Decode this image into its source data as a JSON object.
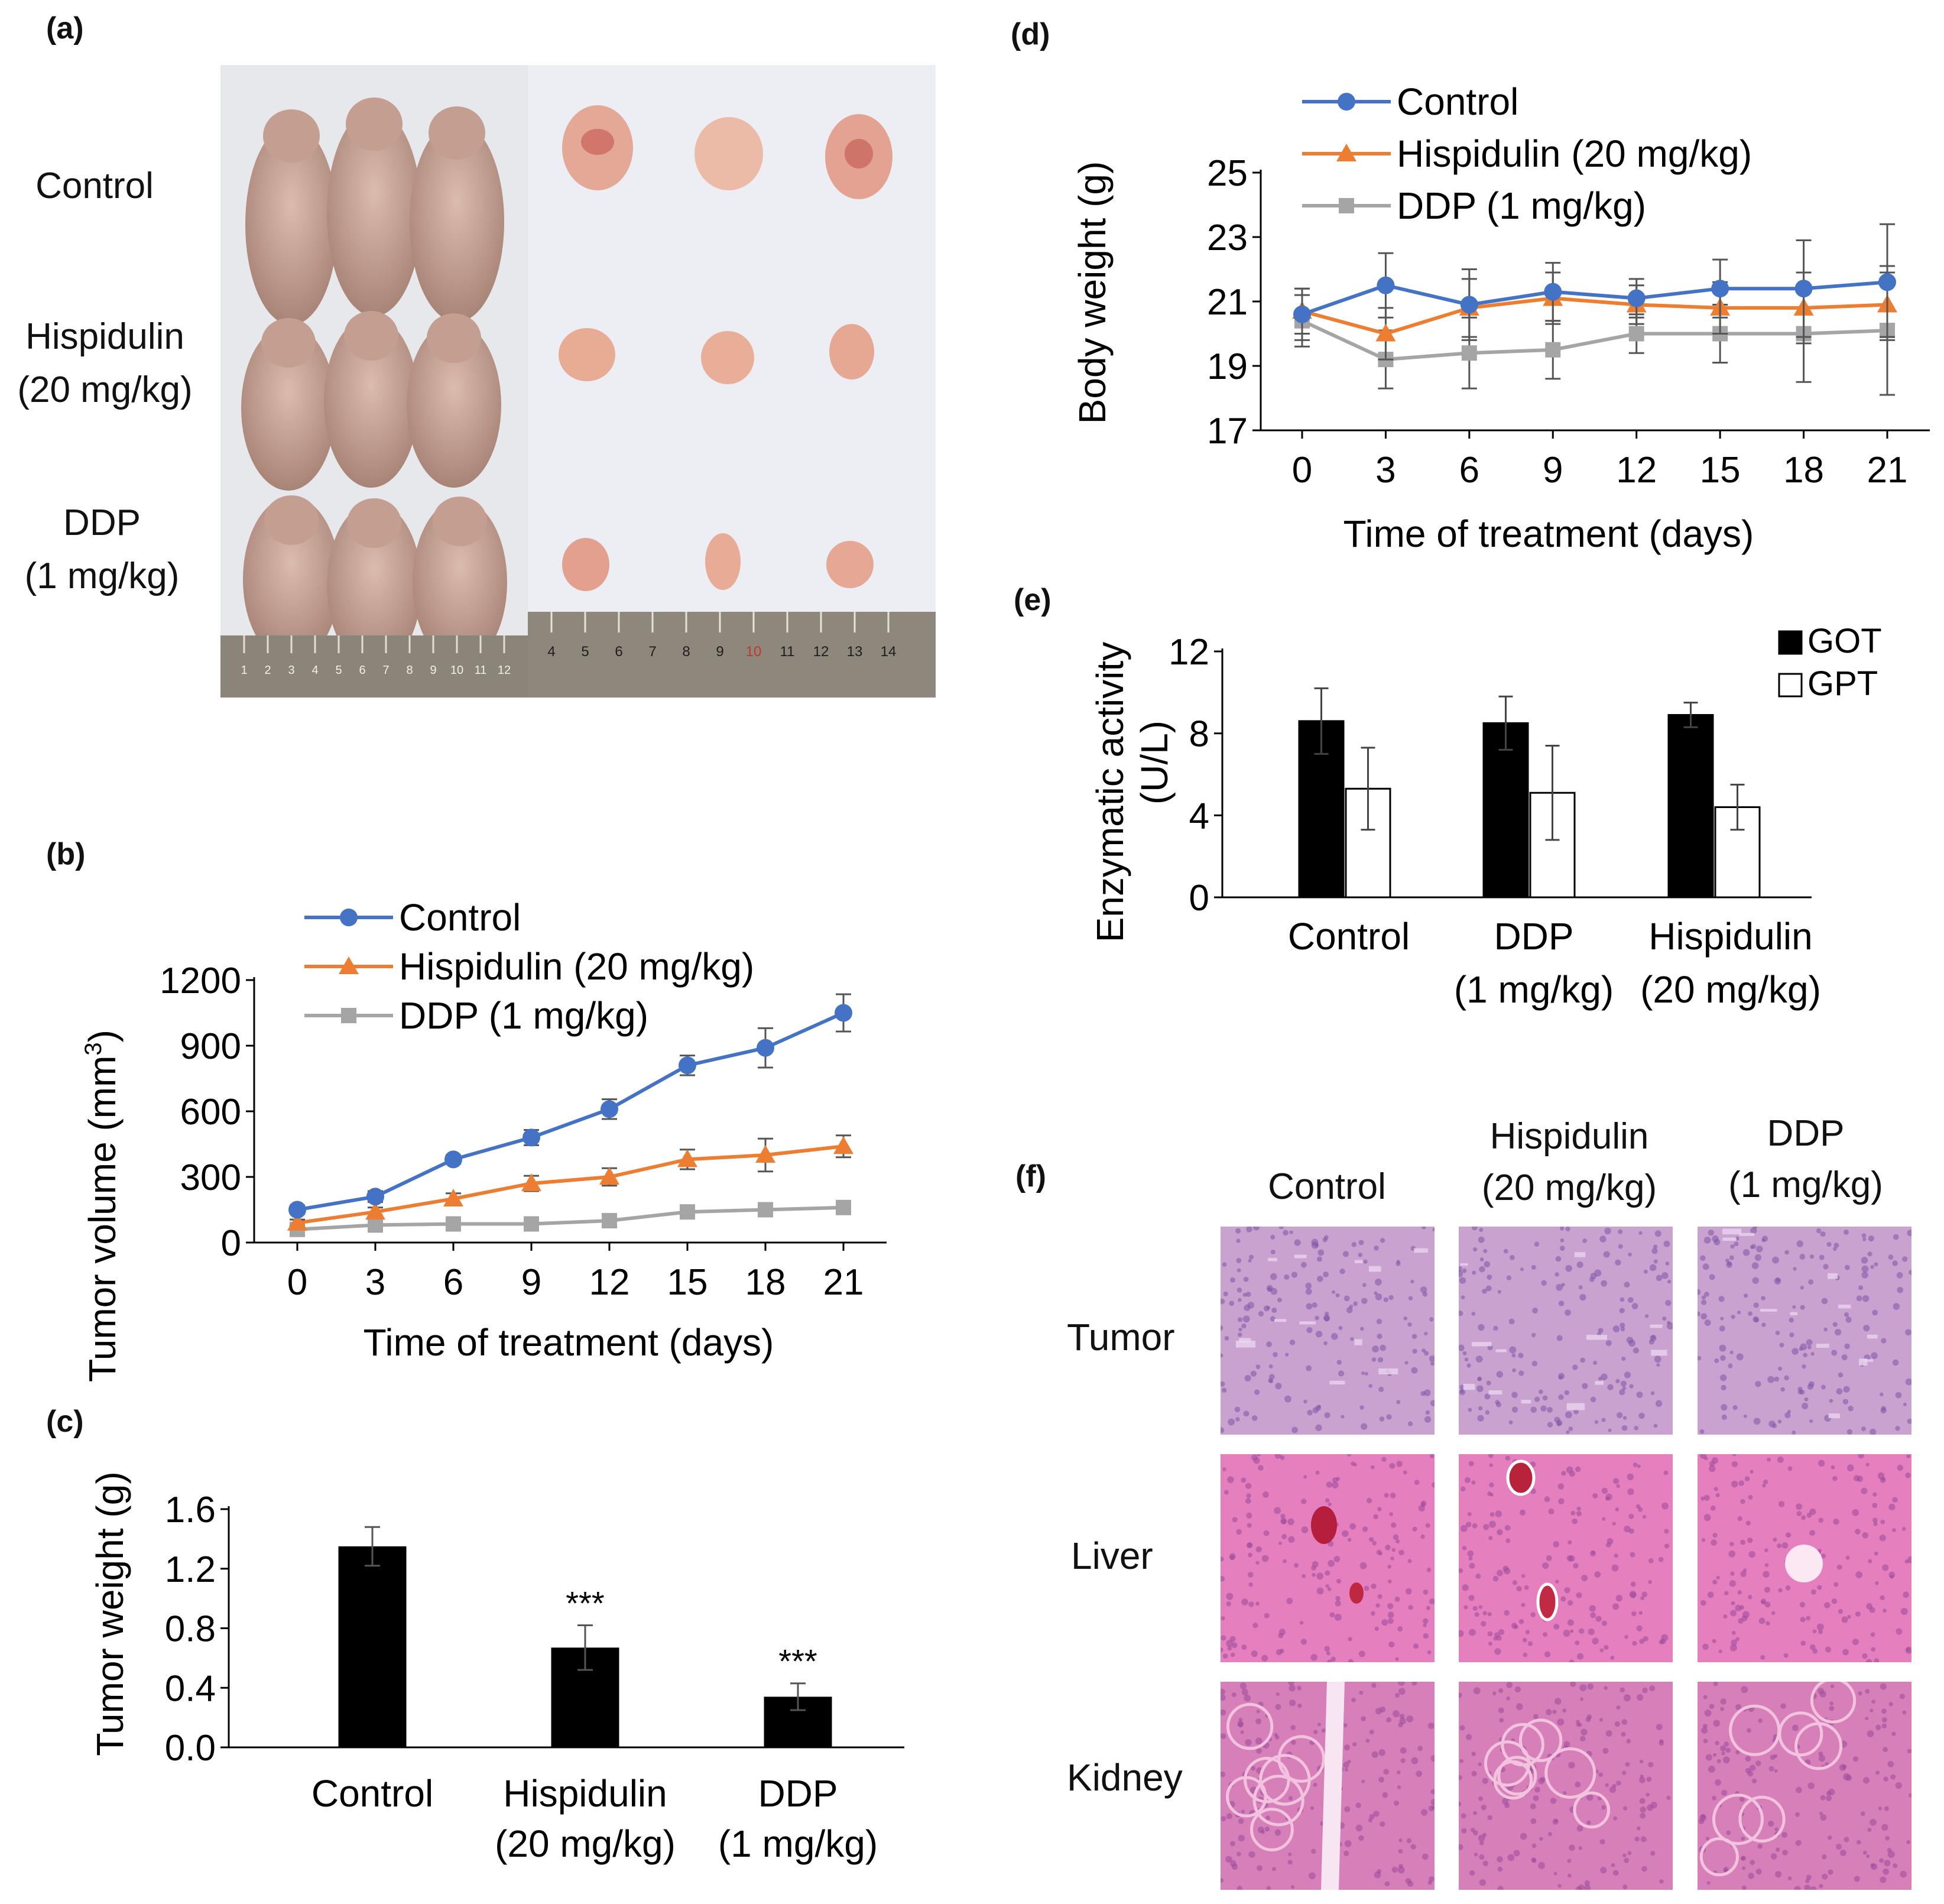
{
  "panel_letters": {
    "a": "(a)",
    "b": "(b)",
    "c": "(c)",
    "d": "(d)",
    "e": "(e)",
    "f": "(f)"
  },
  "panel_a": {
    "groups": [
      {
        "line1": "Control",
        "line2": ""
      },
      {
        "line1": "Hispidulin",
        "line2": "(20 mg/kg)"
      },
      {
        "line1": "DDP",
        "line2": "(1 mg/kg)"
      }
    ],
    "ruler_left_ticks": [
      "1",
      "2",
      "3",
      "4",
      "5",
      "6",
      "7",
      "8",
      "9",
      "10",
      "11",
      "12"
    ],
    "ruler_right_ticks": [
      "4",
      "5",
      "6",
      "7",
      "8",
      "9",
      "10",
      "11",
      "12",
      "13",
      "14"
    ],
    "colors": {
      "mouse": "#c9a79a",
      "tumor": "#e2a593",
      "paper": "#eceef3",
      "ruler": "#8a8578"
    }
  },
  "panel_f": {
    "columns": [
      {
        "line1": "Control",
        "line2": ""
      },
      {
        "line1": "Hispidulin",
        "line2": "(20 mg/kg)"
      },
      {
        "line1": "DDP",
        "line2": "(1 mg/kg)"
      }
    ],
    "rows": [
      "Tumor",
      "Liver",
      "Kidney"
    ],
    "colors": {
      "tumor": "#c9a2cf",
      "liver": "#e57fbd",
      "kidney": "#d77fb9"
    }
  },
  "chart_data": [
    {
      "id": "b",
      "type": "line",
      "title": "",
      "xlabel": "Time of treatment (days)",
      "ylabel": "Tumor volume (mm",
      "ylabel_sup": "3",
      "ylabel_close": ")",
      "x": [
        0,
        3,
        6,
        9,
        12,
        15,
        18,
        21
      ],
      "xticks": [
        "0",
        "3",
        "6",
        "9",
        "12",
        "15",
        "18",
        "21"
      ],
      "ylim": [
        0,
        1200
      ],
      "yticks": [
        0,
        300,
        600,
        900,
        1200
      ],
      "yticklabels": [
        "0",
        "300",
        "600",
        "900",
        "1200"
      ],
      "legend": "top-left",
      "series": [
        {
          "name": "Control",
          "color": "#4472c4",
          "marker": "circle",
          "values": [
            150,
            210,
            380,
            480,
            610,
            810,
            890,
            1050
          ],
          "errors": [
            20,
            25,
            20,
            35,
            45,
            45,
            90,
            85
          ]
        },
        {
          "name": "Hispidulin (20 mg/kg)",
          "color": "#ed7d31",
          "marker": "triangle",
          "values": [
            90,
            140,
            200,
            270,
            300,
            380,
            400,
            440
          ],
          "errors": [
            15,
            20,
            25,
            35,
            40,
            45,
            75,
            50
          ]
        },
        {
          "name": "DDP (1 mg/kg)",
          "color": "#a5a5a5",
          "marker": "square",
          "values": [
            60,
            80,
            85,
            85,
            100,
            140,
            150,
            160
          ],
          "errors": [
            10,
            15,
            15,
            15,
            15,
            20,
            20,
            20
          ]
        }
      ]
    },
    {
      "id": "c",
      "type": "bar",
      "title": "",
      "xlabel": "",
      "ylabel": "Tumor weight (g)",
      "categories": [
        {
          "line1": "Control",
          "line2": ""
        },
        {
          "line1": "Hispidulin",
          "line2": "(20 mg/kg)"
        },
        {
          "line1": "DDP",
          "line2": "(1 mg/kg)"
        }
      ],
      "values": [
        1.35,
        0.67,
        0.34
      ],
      "errors": [
        0.13,
        0.15,
        0.09
      ],
      "significance": [
        "",
        "***",
        "***"
      ],
      "ylim": [
        0,
        1.6
      ],
      "yticks": [
        0,
        0.4,
        0.8,
        1.2,
        1.6
      ],
      "yticklabels": [
        "0.0",
        "0.4",
        "0.8",
        "1.2",
        "1.6"
      ],
      "color": "#000000"
    },
    {
      "id": "d",
      "type": "line",
      "title": "",
      "xlabel": "Time of treatment (days)",
      "ylabel": "Body weight (g)",
      "x": [
        0,
        3,
        6,
        9,
        12,
        15,
        18,
        21
      ],
      "xticks": [
        "0",
        "3",
        "6",
        "9",
        "12",
        "15",
        "18",
        "21"
      ],
      "ylim": [
        17,
        25
      ],
      "yticks": [
        17,
        19,
        21,
        23,
        25
      ],
      "yticklabels": [
        "17",
        "19",
        "21",
        "23",
        "25"
      ],
      "legend": "top-left",
      "series": [
        {
          "name": "Control",
          "color": "#4472c4",
          "marker": "circle",
          "values": [
            20.6,
            21.5,
            20.9,
            21.3,
            21.1,
            21.4,
            21.4,
            21.6
          ],
          "errors": [
            0.8,
            1.0,
            1.1,
            0.9,
            0.6,
            0.9,
            1.5,
            1.8
          ]
        },
        {
          "name": "Hispidulin (20 mg/kg)",
          "color": "#ed7d31",
          "marker": "triangle",
          "values": [
            20.7,
            20.0,
            20.8,
            21.1,
            20.9,
            20.8,
            20.8,
            20.9
          ],
          "errors": [
            0.7,
            0.8,
            0.9,
            0.8,
            0.6,
            0.8,
            1.1,
            1.0
          ]
        },
        {
          "name": "DDP (1 mg/kg)",
          "color": "#a5a5a5",
          "marker": "square",
          "values": [
            20.4,
            19.2,
            19.4,
            19.5,
            20.0,
            20.0,
            20.0,
            20.1
          ],
          "errors": [
            0.8,
            0.9,
            1.1,
            0.9,
            0.6,
            0.9,
            1.5,
            2.0
          ]
        }
      ]
    },
    {
      "id": "e",
      "type": "bar",
      "title": "",
      "xlabel": "",
      "ylabel_line1": "Enzymatic activity",
      "ylabel_line2": "(U/L)",
      "categories": [
        {
          "line1": "Control",
          "line2": ""
        },
        {
          "line1": "DDP",
          "line2": "(1 mg/kg)"
        },
        {
          "line1": "Hispidulin",
          "line2": "(20 mg/kg)"
        }
      ],
      "series": [
        {
          "name": "GOT",
          "fill": "#000000",
          "values": [
            8.6,
            8.5,
            8.9
          ],
          "errors": [
            1.6,
            1.3,
            0.6
          ]
        },
        {
          "name": "GPT",
          "fill": "#ffffff",
          "values": [
            5.3,
            5.1,
            4.4
          ],
          "errors": [
            2.0,
            2.3,
            1.1
          ]
        }
      ],
      "ylim": [
        0,
        12
      ],
      "yticks": [
        0,
        4,
        8,
        12
      ],
      "yticklabels": [
        "0",
        "4",
        "8",
        "12"
      ],
      "legend": "top-right"
    }
  ]
}
